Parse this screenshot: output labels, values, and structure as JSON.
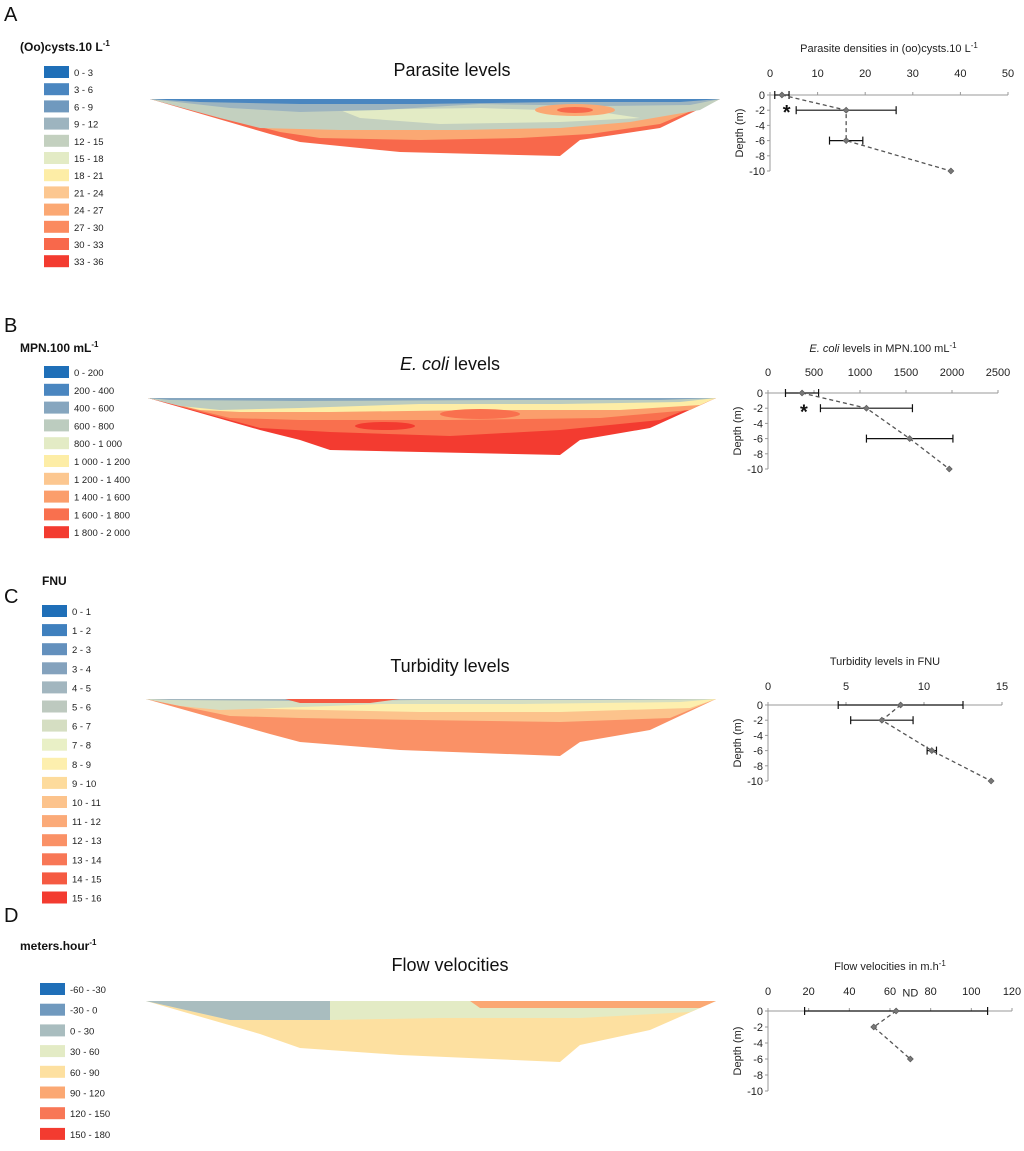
{
  "figure": {
    "panels": [
      {
        "letter": "A",
        "legend_title": "(Oo)cysts.10 L",
        "legend_sup": "-1",
        "map_title_pre": "",
        "map_title_italic": "",
        "map_title_post": "Parasite levels",
        "legend": [
          {
            "label": "0 - 3",
            "color": "#1f6fb8"
          },
          {
            "label": "3 - 6",
            "color": "#4a86c0"
          },
          {
            "label": "6 - 9",
            "color": "#7099be"
          },
          {
            "label": "9 - 12",
            "color": "#9db4bf"
          },
          {
            "label": "12 - 15",
            "color": "#c3d0bf"
          },
          {
            "label": "15 - 18",
            "color": "#e3ebc5"
          },
          {
            "label": "18 - 21",
            "color": "#fdeda6"
          },
          {
            "label": "21 - 24",
            "color": "#fcc790"
          },
          {
            "label": "24 - 27",
            "color": "#fba873"
          },
          {
            "label": "27 - 30",
            "color": "#fb8a5f"
          },
          {
            "label": "30 - 33",
            "color": "#f8684b"
          },
          {
            "label": "33 - 36",
            "color": "#f33b30"
          }
        ]
      },
      {
        "letter": "B",
        "legend_title": "MPN.100 mL",
        "legend_sup": "-1",
        "map_title_pre": "",
        "map_title_italic": "E. coli",
        "map_title_post": " levels",
        "legend": [
          {
            "label": "0 - 200",
            "color": "#1f6fb8"
          },
          {
            "label": "200 - 400",
            "color": "#4a86c0"
          },
          {
            "label": "400 - 600",
            "color": "#86a6bf"
          },
          {
            "label": "600 - 800",
            "color": "#bcccbf"
          },
          {
            "label": "800 - 1 000",
            "color": "#e3ebc5"
          },
          {
            "label": "1 000 - 1 200",
            "color": "#fdeda6"
          },
          {
            "label": "1 200 - 1 400",
            "color": "#fcc790"
          },
          {
            "label": "1 400 - 1 600",
            "color": "#fb9e6c"
          },
          {
            "label": "1 600 - 1 800",
            "color": "#f9704e"
          },
          {
            "label": "1 800 - 2 000",
            "color": "#f33b30"
          }
        ]
      },
      {
        "letter": "C",
        "legend_title": "FNU",
        "legend_sup": "",
        "map_title_pre": "",
        "map_title_italic": "",
        "map_title_post": "Turbidity levels",
        "legend": [
          {
            "label": "0 - 1",
            "color": "#1f6fb8"
          },
          {
            "label": "1 - 2",
            "color": "#3f80be"
          },
          {
            "label": "2 - 3",
            "color": "#6390bd"
          },
          {
            "label": "3 - 4",
            "color": "#84a2bd"
          },
          {
            "label": "4 - 5",
            "color": "#a2b6bf"
          },
          {
            "label": "5 - 6",
            "color": "#bdc9bf"
          },
          {
            "label": "6 - 7",
            "color": "#d5dec2"
          },
          {
            "label": "7 - 8",
            "color": "#e9f0c6"
          },
          {
            "label": "8 - 9",
            "color": "#fdefae"
          },
          {
            "label": "9 - 10",
            "color": "#fddb9c"
          },
          {
            "label": "10 - 11",
            "color": "#fcc38c"
          },
          {
            "label": "11 - 12",
            "color": "#fbaa78"
          },
          {
            "label": "12 - 13",
            "color": "#fa9166"
          },
          {
            "label": "13 - 14",
            "color": "#f87756"
          },
          {
            "label": "14 - 15",
            "color": "#f55a42"
          },
          {
            "label": "15 - 16",
            "color": "#f33b30"
          }
        ]
      },
      {
        "letter": "D",
        "legend_title": "meters.hour",
        "legend_sup": "-1",
        "map_title_pre": "",
        "map_title_italic": "",
        "map_title_post": "Flow velocities",
        "legend": [
          {
            "label": "-60 - -30",
            "color": "#1f6fb8"
          },
          {
            "label": "-30 - 0",
            "color": "#7099be"
          },
          {
            "label": "0 - 30",
            "color": "#a9bdbf"
          },
          {
            "label": "30 - 60",
            "color": "#e3ebc5"
          },
          {
            "label": "60 - 90",
            "color": "#fde0a0"
          },
          {
            "label": "90 - 120",
            "color": "#fba873"
          },
          {
            "label": "120 - 150",
            "color": "#f87756"
          },
          {
            "label": "150 - 180",
            "color": "#f33b30"
          }
        ]
      }
    ]
  },
  "chart_data": [
    {
      "type": "line",
      "panel": "A",
      "title_pre": "Parasite densities in (oo)cysts.10 L",
      "title_italic": "",
      "title_sup": "-1",
      "xlim": [
        0,
        50
      ],
      "xticks": [
        "0",
        "10",
        "20",
        "30",
        "40",
        "50"
      ],
      "ylim": [
        -10,
        0
      ],
      "yticks": [
        "0",
        "-2",
        "-4",
        "-6",
        "-8",
        "-10"
      ],
      "ylabel": "Depth (m)",
      "points": [
        {
          "depth": 0,
          "value": 2.5,
          "err": 1.5
        },
        {
          "depth": -2,
          "value": 16,
          "err": 10.5
        },
        {
          "depth": -6,
          "value": 16,
          "err": 3.5
        },
        {
          "depth": -10,
          "value": 38,
          "err": 0
        }
      ],
      "annotations": [
        {
          "text": "*",
          "value": 3.5,
          "depth": -1.6
        }
      ]
    },
    {
      "type": "line",
      "panel": "B",
      "title_pre": "",
      "title_italic": "E. coli",
      "title_post": " levels in MPN.100 mL",
      "title_sup": "-1",
      "xlim": [
        0,
        2500
      ],
      "xticks": [
        "0",
        "500",
        "1000",
        "1500",
        "2000",
        "2500"
      ],
      "ylim": [
        -10,
        0
      ],
      "yticks": [
        "0",
        "-2",
        "-4",
        "-6",
        "-8",
        "-10"
      ],
      "ylabel": "Depth (m)",
      "points": [
        {
          "depth": 0,
          "value": 370,
          "err": 180
        },
        {
          "depth": -2,
          "value": 1070,
          "err": 500
        },
        {
          "depth": -6,
          "value": 1540,
          "err": 470
        },
        {
          "depth": -10,
          "value": 1970,
          "err": 0
        }
      ],
      "annotations": [
        {
          "text": "*",
          "value": 390,
          "depth": -1.8
        }
      ]
    },
    {
      "type": "line",
      "panel": "C",
      "title_pre": "Turbidity levels in FNU",
      "title_italic": "",
      "title_sup": "",
      "xlim": [
        0,
        15
      ],
      "xticks": [
        "0",
        "5",
        "10",
        "15"
      ],
      "ylim": [
        -10,
        0
      ],
      "yticks": [
        "0",
        "-2",
        "-4",
        "-6",
        "-8",
        "-10"
      ],
      "ylabel": "Depth (m)",
      "points": [
        {
          "depth": 0,
          "value": 8.5,
          "err": 4
        },
        {
          "depth": -2,
          "value": 7.3,
          "err": 2
        },
        {
          "depth": -6,
          "value": 10.5,
          "err": 0.3
        },
        {
          "depth": -10,
          "value": 14.3,
          "err": 0
        }
      ],
      "annotations": []
    },
    {
      "type": "line",
      "panel": "D",
      "title_pre": "Flow velocities in m.h",
      "title_italic": "",
      "title_sup": "-1",
      "xlim": [
        0,
        120
      ],
      "xticks": [
        "0",
        "20",
        "40",
        "60",
        "80",
        "100",
        "120"
      ],
      "ylim": [
        -10,
        0
      ],
      "yticks": [
        "0",
        "-2",
        "-4",
        "-6",
        "-8",
        "-10"
      ],
      "ylabel": "Depth (m)",
      "points": [
        {
          "depth": 0,
          "value": 63,
          "err": 45
        },
        {
          "depth": -2,
          "value": 52,
          "err": 0
        },
        {
          "depth": -6,
          "value": 70,
          "err": 0
        }
      ],
      "annotations": [
        {
          "text": "ND",
          "value": 70,
          "depth": 2.3
        }
      ]
    }
  ]
}
